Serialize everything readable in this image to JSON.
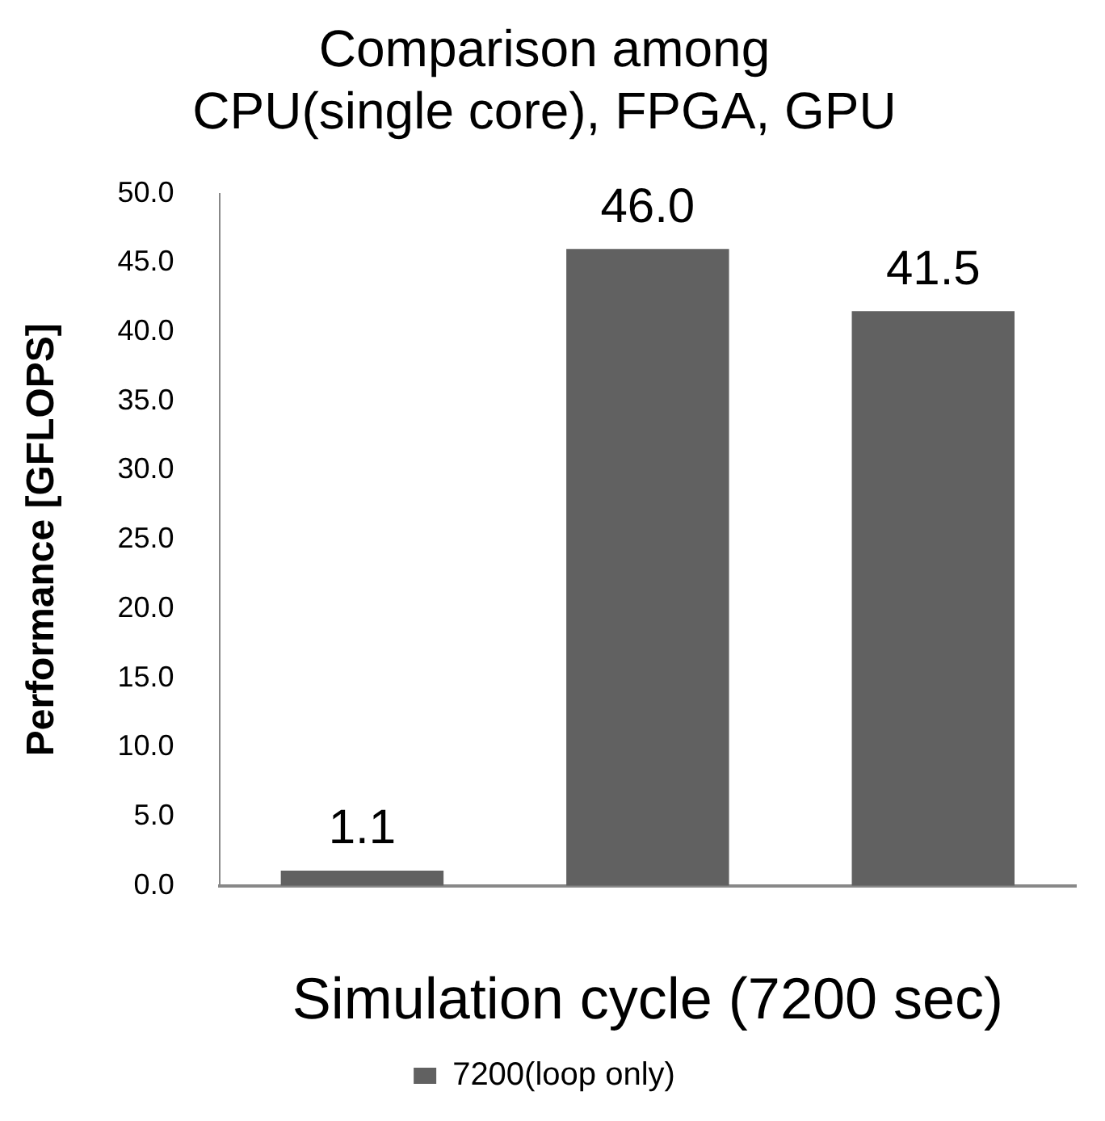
{
  "chart_data": {
    "type": "bar",
    "title": "Comparison among\nCPU(single core), FPGA, GPU",
    "xlabel": "Simulation cycle (7200 sec)",
    "ylabel": "Performance [GFLOPS]",
    "categories": [
      null,
      null,
      null
    ],
    "series": [
      {
        "name": "7200(loop only)",
        "color": "#616161",
        "values": [
          1.1,
          46.0,
          41.5
        ],
        "value_labels": [
          "1.1",
          "46.0",
          "41.5"
        ]
      }
    ],
    "ylim": [
      0,
      50
    ],
    "yticks": [
      {
        "value": 0,
        "label": "0.0"
      },
      {
        "value": 5,
        "label": "5.0"
      },
      {
        "value": 10,
        "label": "10.0"
      },
      {
        "value": 15,
        "label": "15.0"
      },
      {
        "value": 20,
        "label": "20.0"
      },
      {
        "value": 25,
        "label": "25.0"
      },
      {
        "value": 30,
        "label": "30.0"
      },
      {
        "value": 35,
        "label": "35.0"
      },
      {
        "value": 40,
        "label": "40.0"
      },
      {
        "value": 45,
        "label": "45.0"
      },
      {
        "value": 50,
        "label": "50.0"
      }
    ],
    "grid": false,
    "legend": "bottom"
  }
}
